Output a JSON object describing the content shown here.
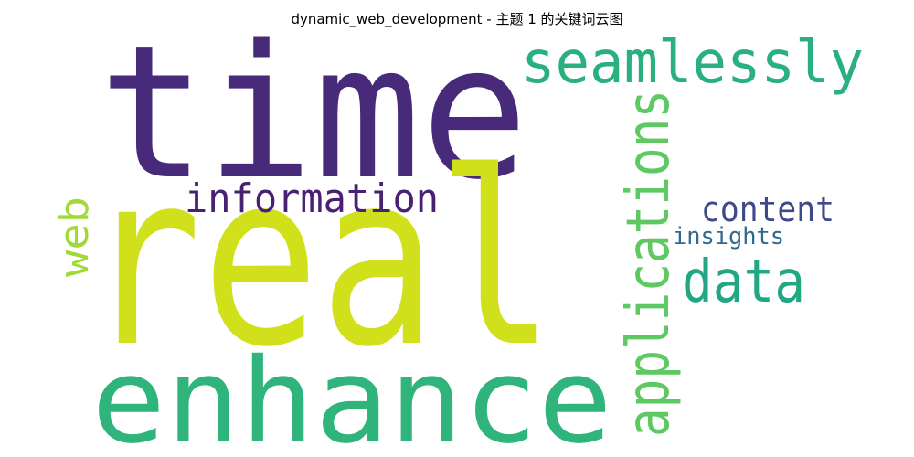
{
  "title": "dynamic_web_development - 主题 1 的关键词云图",
  "words": [
    {
      "text": "time",
      "color": "#472a7a",
      "orientation": "horizontal"
    },
    {
      "text": "real",
      "color": "#d0e11c",
      "orientation": "horizontal"
    },
    {
      "text": "enhance",
      "color": "#2fb47c",
      "orientation": "horizontal"
    },
    {
      "text": "seamlessly",
      "color": "#2ab07f",
      "orientation": "horizontal"
    },
    {
      "text": "applications",
      "color": "#5ec962",
      "orientation": "vertical"
    },
    {
      "text": "information",
      "color": "#482173",
      "orientation": "horizontal"
    },
    {
      "text": "data",
      "color": "#22a785",
      "orientation": "horizontal"
    },
    {
      "text": "content",
      "color": "#3e4989",
      "orientation": "horizontal"
    },
    {
      "text": "insights",
      "color": "#31688e",
      "orientation": "horizontal"
    },
    {
      "text": "web",
      "color": "#a0da39",
      "orientation": "vertical"
    }
  ]
}
